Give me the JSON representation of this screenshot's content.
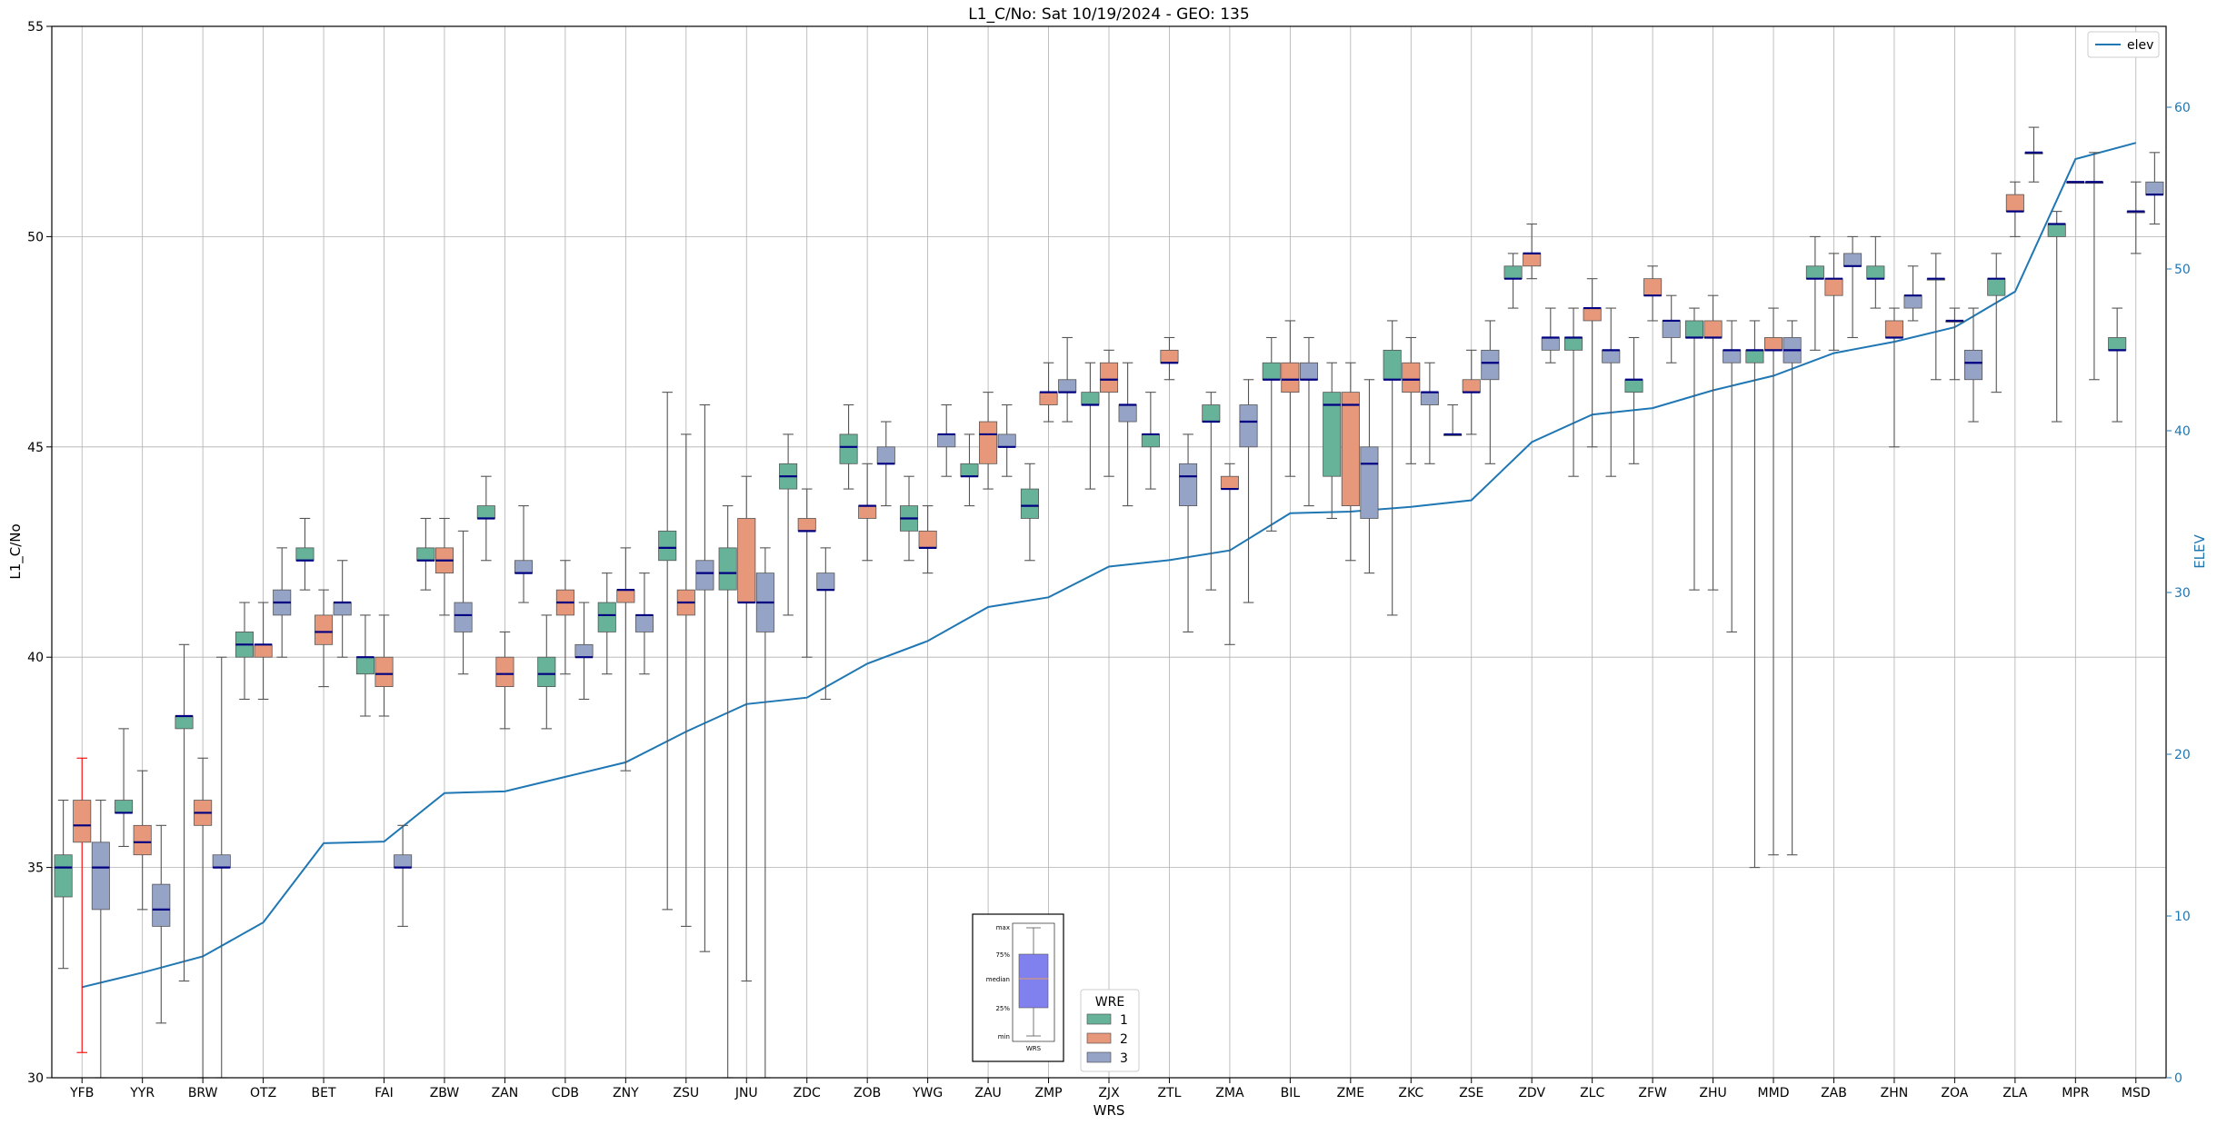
{
  "chart_data": {
    "type": "box",
    "title": "L1_C/No: Sat 10/19/2024 - GEO: 135",
    "xlabel": "WRS",
    "ylabel": "L1_C/No",
    "y2label": "ELEV",
    "ylim": [
      30,
      55
    ],
    "y2lim": [
      0,
      65
    ],
    "yticks": [
      30,
      35,
      40,
      45,
      50,
      55
    ],
    "y2ticks": [
      0,
      10,
      20,
      30,
      40,
      50,
      60
    ],
    "grid": true,
    "categories": [
      "YFB",
      "YYR",
      "BRW",
      "OTZ",
      "BET",
      "FAI",
      "ZBW",
      "ZAN",
      "CDB",
      "ZNY",
      "ZSU",
      "JNU",
      "ZDC",
      "ZOB",
      "YWG",
      "ZAU",
      "ZMP",
      "ZJX",
      "ZTL",
      "ZMA",
      "BIL",
      "ZME",
      "ZKC",
      "ZSE",
      "ZDV",
      "ZLC",
      "ZFW",
      "ZHU",
      "MMD",
      "ZAB",
      "ZHN",
      "ZOA",
      "ZLA",
      "MPR",
      "MSD"
    ],
    "series": [
      {
        "name": "1",
        "color": "#66b399",
        "boxes": [
          {
            "min": 32.6,
            "q1": 34.3,
            "median": 35.0,
            "q3": 35.3,
            "max": 36.6
          },
          {
            "min": 35.5,
            "q1": 36.3,
            "median": 36.3,
            "q3": 36.6,
            "max": 38.3
          },
          {
            "min": 32.3,
            "q1": 38.3,
            "median": 38.6,
            "q3": 38.6,
            "max": 40.3
          },
          {
            "min": 39.0,
            "q1": 40.0,
            "median": 40.3,
            "q3": 40.6,
            "max": 41.3
          },
          {
            "min": 41.6,
            "q1": 42.3,
            "median": 42.3,
            "q3": 42.6,
            "max": 43.3
          },
          {
            "min": 38.6,
            "q1": 39.6,
            "median": 40.0,
            "q3": 40.0,
            "max": 41.0
          },
          {
            "min": 41.6,
            "q1": 42.3,
            "median": 42.3,
            "q3": 42.6,
            "max": 43.3
          },
          {
            "min": 42.3,
            "q1": 43.3,
            "median": 43.3,
            "q3": 43.6,
            "max": 44.3
          },
          {
            "min": 38.3,
            "q1": 39.3,
            "median": 39.6,
            "q3": 40.0,
            "max": 41.0
          },
          {
            "min": 39.6,
            "q1": 40.6,
            "median": 41.0,
            "q3": 41.3,
            "max": 42.0
          },
          {
            "min": 34.0,
            "q1": 42.3,
            "median": 42.6,
            "q3": 43.0,
            "max": 46.3
          },
          {
            "min": 30.0,
            "q1": 41.6,
            "median": 42.0,
            "q3": 42.6,
            "max": 43.6
          },
          {
            "min": 41.0,
            "q1": 44.0,
            "median": 44.3,
            "q3": 44.6,
            "max": 45.3
          },
          {
            "min": 44.0,
            "q1": 44.6,
            "median": 45.0,
            "q3": 45.3,
            "max": 46.0
          },
          {
            "min": 42.3,
            "q1": 43.0,
            "median": 43.3,
            "q3": 43.6,
            "max": 44.3
          },
          {
            "min": 43.6,
            "q1": 44.3,
            "median": 44.3,
            "q3": 44.6,
            "max": 45.3
          },
          {
            "min": 42.3,
            "q1": 43.3,
            "median": 43.6,
            "q3": 44.0,
            "max": 44.6
          },
          {
            "min": 44.0,
            "q1": 46.0,
            "median": 46.0,
            "q3": 46.3,
            "max": 47.0
          },
          {
            "min": 44.0,
            "q1": 45.0,
            "median": 45.3,
            "q3": 45.3,
            "max": 46.3
          },
          {
            "min": 41.6,
            "q1": 45.6,
            "median": 45.6,
            "q3": 46.0,
            "max": 46.3
          },
          {
            "min": 43.0,
            "q1": 46.6,
            "median": 46.6,
            "q3": 47.0,
            "max": 47.6
          },
          {
            "min": 43.3,
            "q1": 44.3,
            "median": 46.0,
            "q3": 46.3,
            "max": 47.0
          },
          {
            "min": 41.0,
            "q1": 46.6,
            "median": 46.6,
            "q3": 47.3,
            "max": 48.0
          },
          {
            "min": 45.3,
            "q1": 45.3,
            "median": 45.3,
            "q3": 45.3,
            "max": 46.0
          },
          {
            "min": 48.3,
            "q1": 49.0,
            "median": 49.0,
            "q3": 49.3,
            "max": 49.6
          },
          {
            "min": 44.3,
            "q1": 47.3,
            "median": 47.6,
            "q3": 47.6,
            "max": 48.3
          },
          {
            "min": 44.6,
            "q1": 46.3,
            "median": 46.6,
            "q3": 46.6,
            "max": 47.6
          },
          {
            "min": 41.6,
            "q1": 47.6,
            "median": 47.6,
            "q3": 48.0,
            "max": 48.3
          },
          {
            "min": 35.0,
            "q1": 47.0,
            "median": 47.3,
            "q3": 47.3,
            "max": 48.0
          },
          {
            "min": 47.3,
            "q1": 49.0,
            "median": 49.0,
            "q3": 49.3,
            "max": 50.0
          },
          {
            "min": 48.3,
            "q1": 49.0,
            "median": 49.0,
            "q3": 49.3,
            "max": 50.0
          },
          {
            "min": 46.6,
            "q1": 49.0,
            "median": 49.0,
            "q3": 49.0,
            "max": 49.6
          },
          {
            "min": 46.3,
            "q1": 48.6,
            "median": 49.0,
            "q3": 49.0,
            "max": 49.6
          },
          {
            "min": 45.6,
            "q1": 50.0,
            "median": 50.3,
            "q3": 50.3,
            "max": 50.6
          },
          {
            "min": 45.6,
            "q1": 47.3,
            "median": 47.3,
            "q3": 47.6,
            "max": 48.3
          }
        ]
      },
      {
        "name": "2",
        "color": "#e8987a",
        "boxes": [
          {
            "min": 30.6,
            "q1": 35.6,
            "median": 36.0,
            "q3": 36.6,
            "max": 37.6
          },
          {
            "min": 34.0,
            "q1": 35.3,
            "median": 35.6,
            "q3": 36.0,
            "max": 37.3
          },
          {
            "min": 30.0,
            "q1": 36.0,
            "median": 36.3,
            "q3": 36.6,
            "max": 37.6
          },
          {
            "min": 39.0,
            "q1": 40.0,
            "median": 40.3,
            "q3": 40.3,
            "max": 41.3
          },
          {
            "min": 39.3,
            "q1": 40.3,
            "median": 40.6,
            "q3": 41.0,
            "max": 41.6
          },
          {
            "min": 38.6,
            "q1": 39.3,
            "median": 39.6,
            "q3": 40.0,
            "max": 41.0
          },
          {
            "min": 41.0,
            "q1": 42.0,
            "median": 42.3,
            "q3": 42.6,
            "max": 43.3
          },
          {
            "min": 38.3,
            "q1": 39.3,
            "median": 39.6,
            "q3": 40.0,
            "max": 40.6
          },
          {
            "min": 39.6,
            "q1": 41.0,
            "median": 41.3,
            "q3": 41.6,
            "max": 42.3
          },
          {
            "min": 37.3,
            "q1": 41.3,
            "median": 41.6,
            "q3": 41.6,
            "max": 42.6
          },
          {
            "min": 33.6,
            "q1": 41.0,
            "median": 41.3,
            "q3": 41.6,
            "max": 45.3
          },
          {
            "min": 32.3,
            "q1": 41.3,
            "median": 41.3,
            "q3": 43.3,
            "max": 44.3
          },
          {
            "min": 40.0,
            "q1": 43.0,
            "median": 43.0,
            "q3": 43.3,
            "max": 44.0
          },
          {
            "min": 42.3,
            "q1": 43.3,
            "median": 43.6,
            "q3": 43.6,
            "max": 44.6
          },
          {
            "min": 42.0,
            "q1": 42.6,
            "median": 42.6,
            "q3": 43.0,
            "max": 43.6
          },
          {
            "min": 44.0,
            "q1": 44.6,
            "median": 45.3,
            "q3": 45.6,
            "max": 46.3
          },
          {
            "min": 45.6,
            "q1": 46.0,
            "median": 46.3,
            "q3": 46.3,
            "max": 47.0
          },
          {
            "min": 44.3,
            "q1": 46.3,
            "median": 46.6,
            "q3": 47.0,
            "max": 47.3
          },
          {
            "min": 46.6,
            "q1": 47.0,
            "median": 47.0,
            "q3": 47.3,
            "max": 47.6
          },
          {
            "min": 40.3,
            "q1": 44.0,
            "median": 44.0,
            "q3": 44.3,
            "max": 44.6
          },
          {
            "min": 44.3,
            "q1": 46.3,
            "median": 46.6,
            "q3": 47.0,
            "max": 48.0
          },
          {
            "min": 42.3,
            "q1": 43.6,
            "median": 46.0,
            "q3": 46.3,
            "max": 47.0
          },
          {
            "min": 44.6,
            "q1": 46.3,
            "median": 46.6,
            "q3": 47.0,
            "max": 47.6
          },
          {
            "min": 45.3,
            "q1": 46.3,
            "median": 46.3,
            "q3": 46.6,
            "max": 47.3
          },
          {
            "min": 49.0,
            "q1": 49.3,
            "median": 49.6,
            "q3": 49.6,
            "max": 50.3
          },
          {
            "min": 45.0,
            "q1": 48.0,
            "median": 48.3,
            "q3": 48.3,
            "max": 49.0
          },
          {
            "min": 48.0,
            "q1": 48.6,
            "median": 48.6,
            "q3": 49.0,
            "max": 49.3
          },
          {
            "min": 41.6,
            "q1": 47.6,
            "median": 47.6,
            "q3": 48.0,
            "max": 48.6
          },
          {
            "min": 35.3,
            "q1": 47.3,
            "median": 47.3,
            "q3": 47.6,
            "max": 48.3
          },
          {
            "min": 47.3,
            "q1": 48.6,
            "median": 49.0,
            "q3": 49.0,
            "max": 49.6
          },
          {
            "min": 45.0,
            "q1": 47.6,
            "median": 47.6,
            "q3": 48.0,
            "max": 48.3
          },
          {
            "min": 46.6,
            "q1": 48.0,
            "median": 48.0,
            "q3": 48.0,
            "max": 48.3
          },
          {
            "min": 50.0,
            "q1": 50.6,
            "median": 50.6,
            "q3": 51.0,
            "max": 51.3
          },
          {
            "min": 51.3,
            "q1": 51.3,
            "median": 51.3,
            "q3": 51.3,
            "max": 51.3
          },
          {
            "min": 49.6,
            "q1": 50.6,
            "median": 50.6,
            "q3": 50.6,
            "max": 51.3
          }
        ]
      },
      {
        "name": "3",
        "color": "#95a3c6",
        "boxes": [
          {
            "min": 30.0,
            "q1": 34.0,
            "median": 35.0,
            "q3": 35.6,
            "max": 36.6
          },
          {
            "min": 31.3,
            "q1": 33.6,
            "median": 34.0,
            "q3": 34.6,
            "max": 36.0
          },
          {
            "min": 30.0,
            "q1": 35.0,
            "median": 35.0,
            "q3": 35.3,
            "max": 40.0
          },
          {
            "min": 40.0,
            "q1": 41.0,
            "median": 41.3,
            "q3": 41.6,
            "max": 42.6
          },
          {
            "min": 40.0,
            "q1": 41.0,
            "median": 41.3,
            "q3": 41.3,
            "max": 42.3
          },
          {
            "min": 33.6,
            "q1": 35.0,
            "median": 35.0,
            "q3": 35.3,
            "max": 36.0
          },
          {
            "min": 39.6,
            "q1": 40.6,
            "median": 41.0,
            "q3": 41.3,
            "max": 43.0
          },
          {
            "min": 41.3,
            "q1": 42.0,
            "median": 42.0,
            "q3": 42.3,
            "max": 43.6
          },
          {
            "min": 39.0,
            "q1": 40.0,
            "median": 40.0,
            "q3": 40.3,
            "max": 41.3
          },
          {
            "min": 39.6,
            "q1": 40.6,
            "median": 41.0,
            "q3": 41.0,
            "max": 42.0
          },
          {
            "min": 33.0,
            "q1": 41.6,
            "median": 42.0,
            "q3": 42.3,
            "max": 46.0
          },
          {
            "min": 30.0,
            "q1": 40.6,
            "median": 41.3,
            "q3": 42.0,
            "max": 42.6
          },
          {
            "min": 39.0,
            "q1": 41.6,
            "median": 41.6,
            "q3": 42.0,
            "max": 42.6
          },
          {
            "min": 43.6,
            "q1": 44.6,
            "median": 44.6,
            "q3": 45.0,
            "max": 45.6
          },
          {
            "min": 44.3,
            "q1": 45.0,
            "median": 45.3,
            "q3": 45.3,
            "max": 46.0
          },
          {
            "min": 44.3,
            "q1": 45.0,
            "median": 45.0,
            "q3": 45.3,
            "max": 46.0
          },
          {
            "min": 45.6,
            "q1": 46.3,
            "median": 46.3,
            "q3": 46.6,
            "max": 47.6
          },
          {
            "min": 43.6,
            "q1": 45.6,
            "median": 46.0,
            "q3": 46.0,
            "max": 47.0
          },
          {
            "min": 40.6,
            "q1": 43.6,
            "median": 44.3,
            "q3": 44.6,
            "max": 45.3
          },
          {
            "min": 41.3,
            "q1": 45.0,
            "median": 45.6,
            "q3": 46.0,
            "max": 46.6
          },
          {
            "min": 43.6,
            "q1": 46.6,
            "median": 46.6,
            "q3": 47.0,
            "max": 47.6
          },
          {
            "min": 42.0,
            "q1": 43.3,
            "median": 44.6,
            "q3": 45.0,
            "max": 46.6
          },
          {
            "min": 44.6,
            "q1": 46.0,
            "median": 46.3,
            "q3": 46.3,
            "max": 47.0
          },
          {
            "min": 44.6,
            "q1": 46.6,
            "median": 47.0,
            "q3": 47.3,
            "max": 48.0
          },
          {
            "min": 47.0,
            "q1": 47.3,
            "median": 47.6,
            "q3": 47.6,
            "max": 48.3
          },
          {
            "min": 44.3,
            "q1": 47.0,
            "median": 47.3,
            "q3": 47.3,
            "max": 48.3
          },
          {
            "min": 47.0,
            "q1": 47.6,
            "median": 48.0,
            "q3": 48.0,
            "max": 48.6
          },
          {
            "min": 40.6,
            "q1": 47.0,
            "median": 47.3,
            "q3": 47.3,
            "max": 48.0
          },
          {
            "min": 35.3,
            "q1": 47.0,
            "median": 47.3,
            "q3": 47.6,
            "max": 48.0
          },
          {
            "min": 47.6,
            "q1": 49.3,
            "median": 49.3,
            "q3": 49.6,
            "max": 50.0
          },
          {
            "min": 48.0,
            "q1": 48.3,
            "median": 48.6,
            "q3": 48.6,
            "max": 49.3
          },
          {
            "min": 45.6,
            "q1": 46.6,
            "median": 47.0,
            "q3": 47.3,
            "max": 48.3
          },
          {
            "min": 51.3,
            "q1": 52.0,
            "median": 52.0,
            "q3": 52.0,
            "max": 52.6
          },
          {
            "min": 46.6,
            "q1": 51.3,
            "median": 51.3,
            "q3": 51.3,
            "max": 52.0
          },
          {
            "min": 50.3,
            "q1": 51.0,
            "median": 51.0,
            "q3": 51.3,
            "max": 52.0
          }
        ]
      }
    ],
    "line": {
      "name": "elev",
      "color": "#1f77b4",
      "axis": "right",
      "values": [
        5.6,
        6.5,
        7.5,
        9.6,
        14.5,
        14.6,
        17.6,
        17.7,
        18.6,
        19.5,
        21.4,
        23.1,
        23.5,
        25.6,
        27.0,
        29.1,
        29.7,
        31.6,
        32.0,
        32.6,
        34.9,
        35.0,
        35.3,
        35.7,
        39.3,
        41.0,
        41.4,
        42.5,
        43.4,
        44.8,
        45.5,
        46.4,
        48.6,
        56.8,
        57.8
      ]
    },
    "legends": [
      {
        "placement": "top-right",
        "entries": [
          "elev"
        ]
      },
      {
        "placement": "bottom-center",
        "title": "WRE",
        "entries": [
          "1",
          "2",
          "3"
        ]
      }
    ],
    "inset": {
      "labels": [
        "max",
        "75%",
        "median",
        "25%",
        "min"
      ],
      "xlabel": "WRS",
      "color": "#8080ee"
    },
    "highlight_whisker_color": "#ff0000",
    "median_color": "#000080"
  }
}
